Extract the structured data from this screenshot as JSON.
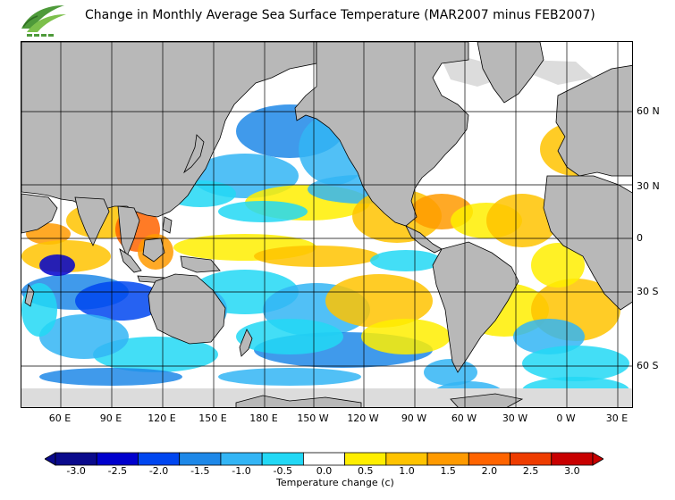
{
  "title": "Change in Monthly Average Sea Surface Temperature (MAR2007 minus FEB2007)",
  "latitude_labels": [
    "60 N",
    "30 N",
    "0",
    "30 S",
    "60 S"
  ],
  "longitude_labels": [
    "60 E",
    "90 E",
    "120 E",
    "150 E",
    "180 E",
    "150 W",
    "120 W",
    "90 W",
    "60 W",
    "30 W",
    "0 W",
    "30 E"
  ],
  "colorbar": {
    "title": "Temperature change  (c)",
    "tick_labels": [
      "-3.0",
      "-2.5",
      "-2.0",
      "-1.5",
      "-1.0",
      "-0.5",
      "0.0",
      "0.5",
      "1.0",
      "1.5",
      "2.0",
      "2.5",
      "3.0"
    ],
    "colors": [
      "#0a0a8c",
      "#0000cd",
      "#0046f0",
      "#1e88e8",
      "#33b5f5",
      "#22d8f5",
      "#ffffff",
      "#ffee00",
      "#ffc300",
      "#ff9a00",
      "#ff6400",
      "#ee3c00",
      "#c80000"
    ]
  },
  "land_color": "#b8b8b8",
  "ice_color": "#dcdcdc"
}
